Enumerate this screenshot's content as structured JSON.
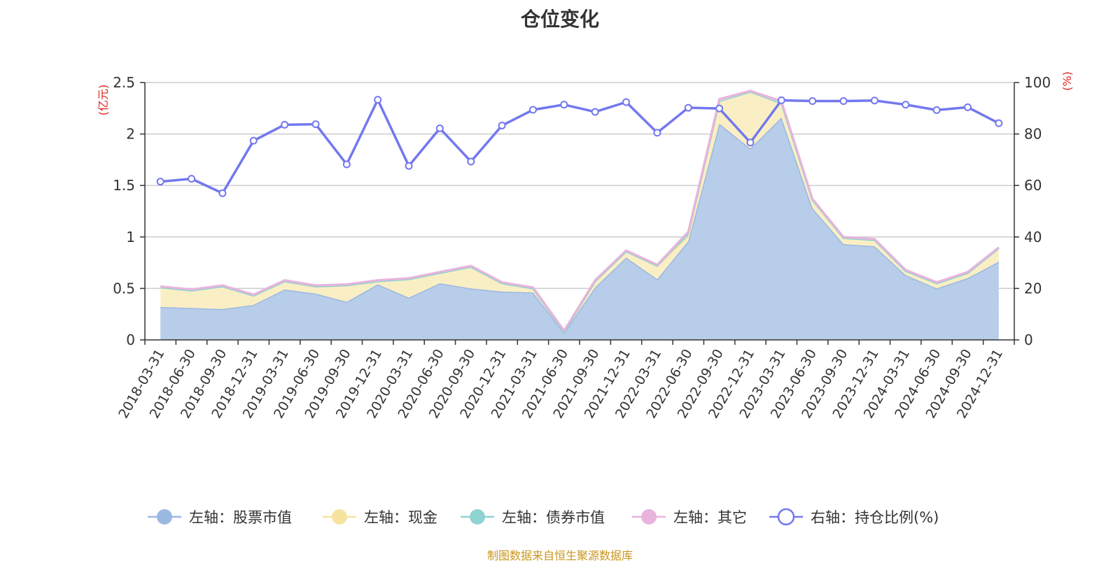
{
  "chart_data": {
    "type": "area",
    "title": "仓位变化",
    "source_note": "制图数据来自恒生聚源数据库",
    "left_axis": {
      "unit": "(亿元)",
      "ylim": [
        0,
        2.5
      ],
      "ticks": [
        "0",
        "0.5",
        "1",
        "1.5",
        "2",
        "2.5"
      ],
      "tick_values": [
        0,
        0.5,
        1,
        1.5,
        2,
        2.5
      ]
    },
    "right_axis": {
      "unit": "(%)",
      "ylim": [
        0,
        100
      ],
      "ticks": [
        "0",
        "20",
        "40",
        "60",
        "80",
        "100"
      ],
      "tick_values": [
        0,
        20,
        40,
        60,
        80,
        100
      ]
    },
    "categories": [
      "2018-03-31",
      "2018-06-30",
      "2018-09-30",
      "2018-12-31",
      "2019-03-31",
      "2019-06-30",
      "2019-09-30",
      "2019-12-31",
      "2020-03-31",
      "2020-06-30",
      "2020-09-30",
      "2020-12-31",
      "2021-03-31",
      "2021-06-30",
      "2021-09-30",
      "2021-12-31",
      "2022-03-31",
      "2022-06-30",
      "2022-09-30",
      "2022-12-31",
      "2023-03-31",
      "2023-06-30",
      "2023-09-30",
      "2023-12-31",
      "2024-03-31",
      "2024-06-30",
      "2024-09-30",
      "2024-12-31"
    ],
    "series": [
      {
        "name": "左轴：股票市值",
        "axis": "left",
        "stack": true,
        "color": "#9bb8e3",
        "fill": "#b8cde9",
        "values": [
          0.32,
          0.31,
          0.3,
          0.34,
          0.49,
          0.45,
          0.37,
          0.54,
          0.41,
          0.55,
          0.5,
          0.47,
          0.46,
          0.07,
          0.51,
          0.8,
          0.59,
          0.96,
          2.1,
          1.86,
          2.16,
          1.28,
          0.93,
          0.91,
          0.63,
          0.5,
          0.6,
          0.76
        ]
      },
      {
        "name": "左轴：现金",
        "axis": "left",
        "stack": true,
        "color": "#f7e3a0",
        "fill": "#faefc4",
        "values": [
          0.19,
          0.17,
          0.22,
          0.09,
          0.08,
          0.07,
          0.16,
          0.03,
          0.18,
          0.1,
          0.21,
          0.08,
          0.04,
          0.01,
          0.06,
          0.06,
          0.13,
          0.05,
          0.22,
          0.55,
          0.14,
          0.08,
          0.06,
          0.06,
          0.04,
          0.05,
          0.05,
          0.13
        ]
      },
      {
        "name": "左轴：债券市值",
        "axis": "left",
        "stack": true,
        "color": "#8fd3d3",
        "fill": "#9fd8d8",
        "values": [
          0,
          0,
          0,
          0,
          0,
          0,
          0,
          0,
          0,
          0,
          0,
          0,
          0,
          0,
          0,
          0,
          0,
          0.03,
          0,
          0,
          0,
          0,
          0,
          0,
          0,
          0,
          0,
          0
        ]
      },
      {
        "name": "左轴：其它",
        "axis": "left",
        "stack": true,
        "color": "#e8b4dc",
        "fill": "#efc8e6",
        "values": [
          0.01,
          0.01,
          0.01,
          0.01,
          0.01,
          0.01,
          0.01,
          0.01,
          0.01,
          0.01,
          0.01,
          0.01,
          0.01,
          0.01,
          0.01,
          0.01,
          0.01,
          0.01,
          0.02,
          0.01,
          0.02,
          0.01,
          0.01,
          0.01,
          0.01,
          0.01,
          0.01,
          0.01
        ]
      },
      {
        "name": "右轴：持仓比例(%)",
        "axis": "right",
        "stack": false,
        "color": "#7378ee",
        "values": [
          61.5,
          62.6,
          57.0,
          77.4,
          83.6,
          83.8,
          68.2,
          93.3,
          67.6,
          82.2,
          69.3,
          83.3,
          89.4,
          91.4,
          88.6,
          92.4,
          80.5,
          90.2,
          89.9,
          76.7,
          93.1,
          92.8,
          92.8,
          93.0,
          91.4,
          89.3,
          90.4,
          84.2
        ]
      }
    ]
  }
}
